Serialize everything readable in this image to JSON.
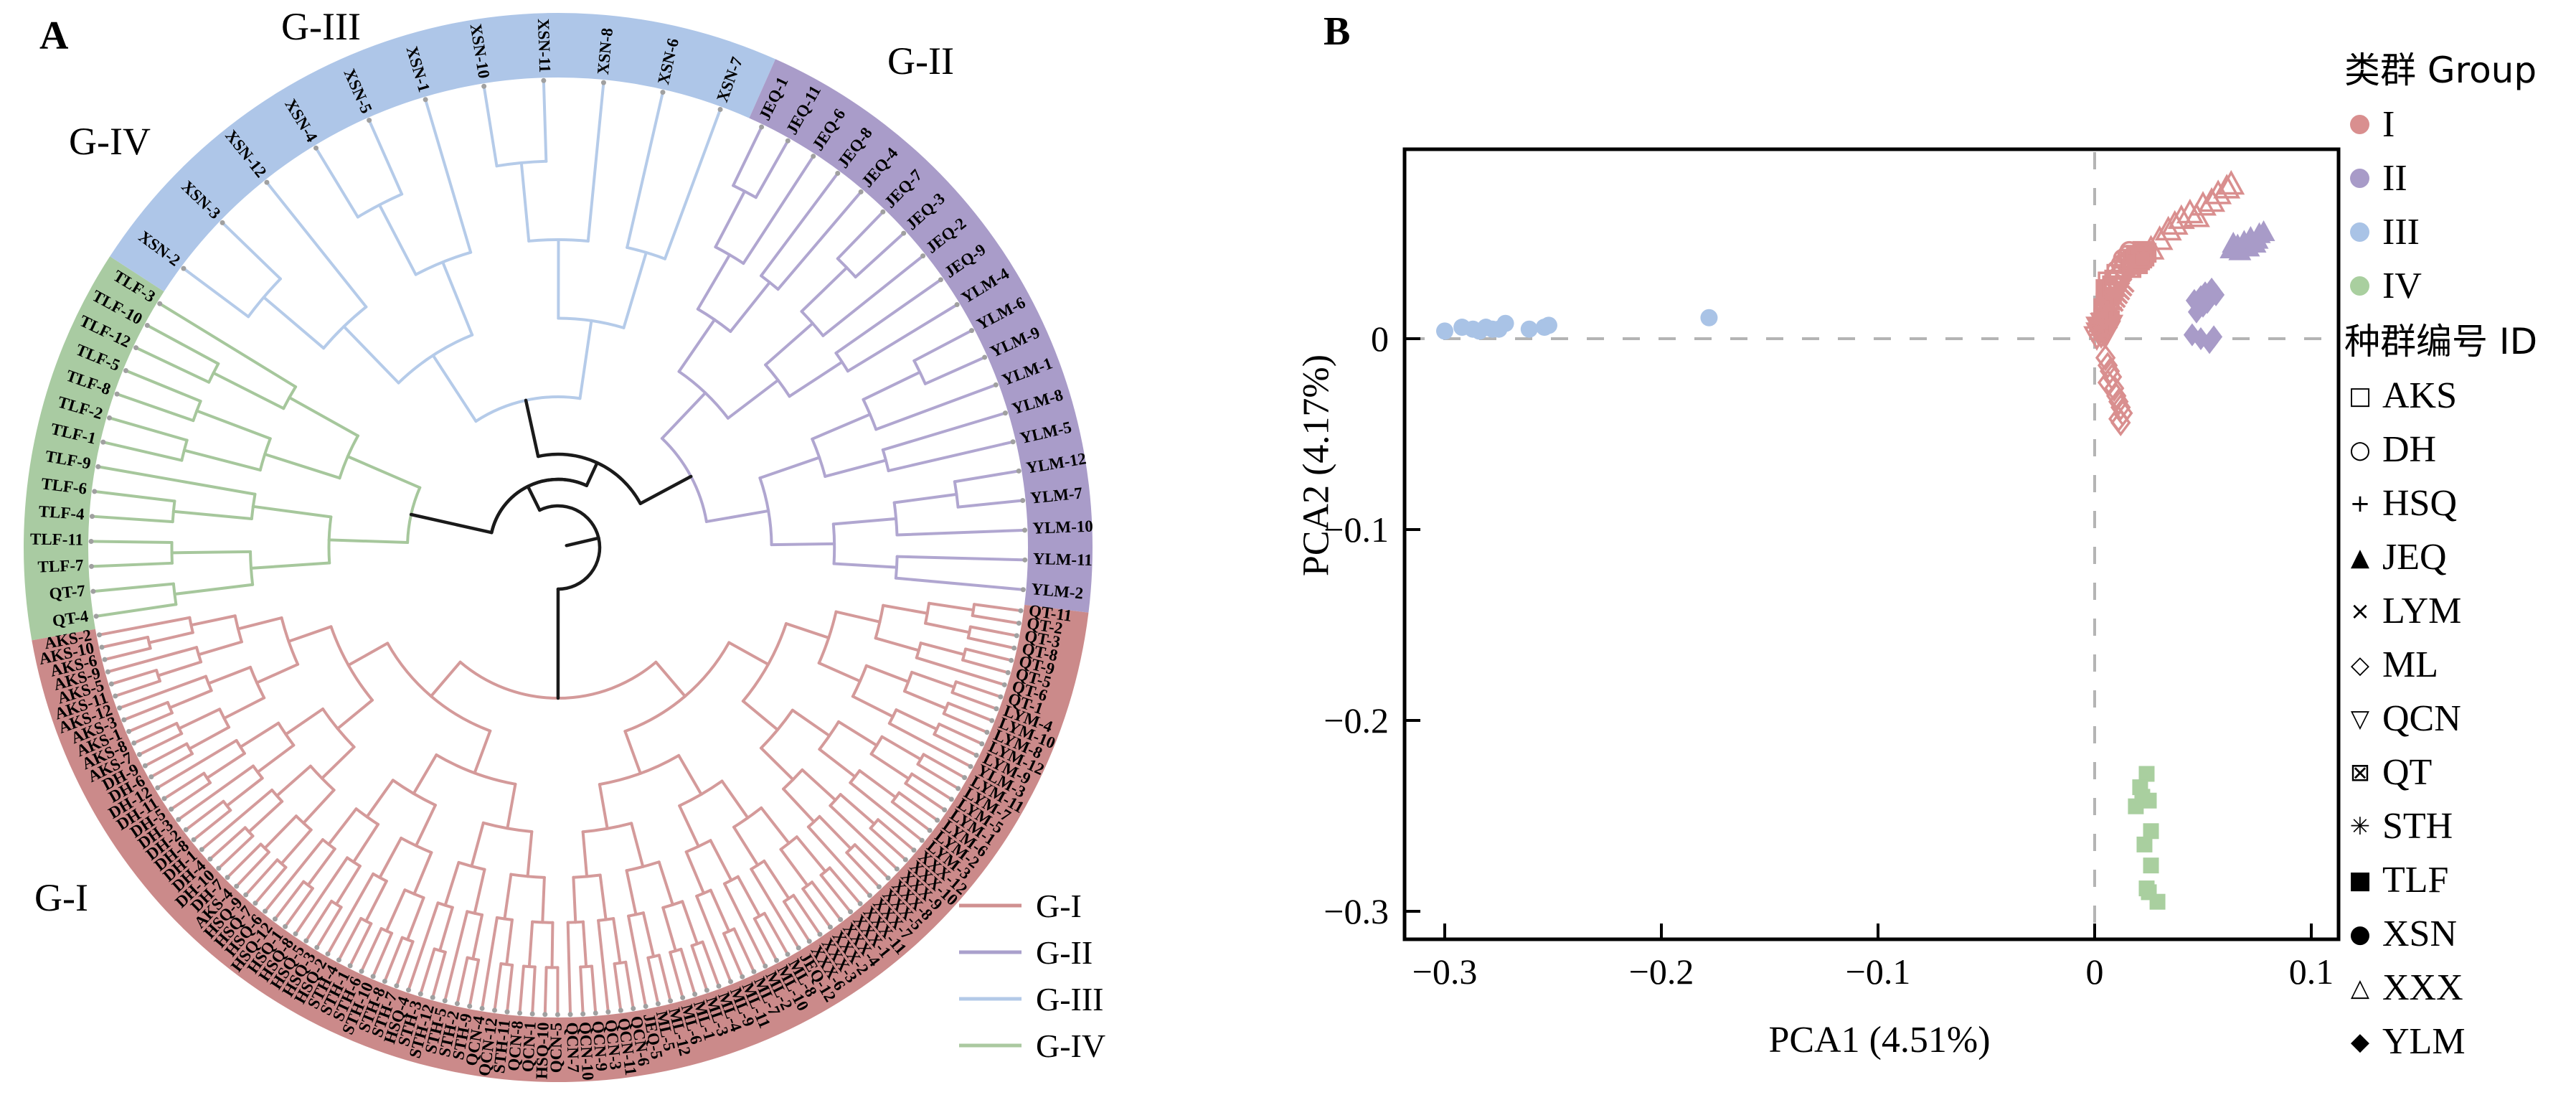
{
  "figure": {
    "panel_a": {
      "label": "A",
      "group_labels": {
        "g1": "G-I",
        "g2": "G-II",
        "g3": "G-III",
        "g4": "G-IV"
      },
      "legend": [
        {
          "label": "G-I",
          "color": "#d09090"
        },
        {
          "label": "G-II",
          "color": "#aaa0cc"
        },
        {
          "label": "G-III",
          "color": "#b3c9e8"
        },
        {
          "label": "G-IV",
          "color": "#abc9a0"
        }
      ],
      "groups": [
        {
          "id": "G-IV",
          "line_color": "#a6c79c",
          "band_color": "#a9cba2",
          "leaves": [
            "QT-4",
            "QT-7",
            "TLF-7",
            "TLF-11",
            "TLF-4",
            "TLF-6",
            "TLF-9",
            "TLF-1",
            "TLF-2",
            "TLF-8",
            "TLF-5",
            "TLF-12",
            "TLF-10",
            "TLF-3"
          ]
        },
        {
          "id": "G-III",
          "line_color": "#b5cbe9",
          "band_color": "#aec6e8",
          "leaves": [
            "XSN-2",
            "XSN-3",
            "XSN-12",
            "XSN-4",
            "XSN-5",
            "XSN-1",
            "XSN-10",
            "XSN-11",
            "XSN-8",
            "XSN-6",
            "XSN-7"
          ]
        },
        {
          "id": "G-II",
          "line_color": "#b0a6d0",
          "band_color": "#a99cc9",
          "leaves": [
            "JEQ-1",
            "JEQ-11",
            "JEQ-6",
            "JEQ-8",
            "JEQ-4",
            "JEQ-7",
            "JEQ-3",
            "JEQ-2",
            "JEQ-9",
            "YLM-4",
            "YLM-6",
            "YLM-9",
            "YLM-1",
            "YLM-8",
            "YLM-5",
            "YLM-12",
            "YLM-7",
            "YLM-10",
            "YLM-11",
            "YLM-2"
          ]
        },
        {
          "id": "G-I",
          "line_color": "#d49a9a",
          "band_color": "#cb8a8a",
          "leaves": [
            "QT-11",
            "QT-2",
            "QT-3",
            "QT-8",
            "QT-9",
            "QT-5",
            "QT-6",
            "QT-1",
            "LYM-4",
            "LYM-10",
            "LYM-8",
            "LYM-12",
            "LYM-9",
            "YLM-3",
            "LYM-11",
            "LYM-7",
            "LYM-5",
            "LYM-1",
            "LYM-6",
            "LYM-2",
            "LYM-3",
            "XXX-12",
            "XXX-10",
            "XXX-9",
            "XXX-8",
            "XXX-5",
            "XXX-7",
            "XXX-11",
            "XXX-1",
            "XXX-4",
            "XXX-2",
            "XXX-3",
            "XXX-6",
            "JEQ-12",
            "ML-8",
            "ML-10",
            "ML-2",
            "ML-7",
            "ML-11",
            "ML-9",
            "ML-4",
            "ML-3",
            "ML-1",
            "ML-6",
            "ML-12",
            "ML-5",
            "JEQ-5",
            "QCN-6",
            "QCN-11",
            "QCN-3",
            "QCN-9",
            "QCN-10",
            "QCN-7",
            "QCN-5",
            "HSQ-10",
            "QCN-1",
            "QCN-8",
            "STH-11",
            "QCN-12",
            "QCN-4",
            "STH-9",
            "STH-2",
            "STH-5",
            "STH-12",
            "STH-3",
            "HSQ-4",
            "STH-7",
            "STH-8",
            "STH-10",
            "STH-6",
            "STH-1",
            "STH-4",
            "HSQ-2",
            "HSQ-3",
            "HSQ-5",
            "HSQ-8",
            "HSQ-1",
            "HSQ-12",
            "HSQ-6",
            "HSQ-7",
            "HSQ-9",
            "AKS-4",
            "DH-7",
            "DH-10",
            "DH-4",
            "DH-1",
            "DH-8",
            "DH-2",
            "DH-3",
            "DH-5",
            "DH-11",
            "DH-12",
            "DH-6",
            "DH-9",
            "AKS-7",
            "AKS-8",
            "AKS-1",
            "AKS-3",
            "AKS-12",
            "AKS-11",
            "AKS-5",
            "AKS-9",
            "AKS-6",
            "AKS-10",
            "AKS-2"
          ]
        }
      ]
    },
    "panel_b": {
      "label": "B",
      "xlabel": "PCA1 (4.51%)",
      "ylabel": "PCA2 (4.17%)",
      "legend_group_title": "类群 Group",
      "legend_groups": [
        {
          "label": "I",
          "color": "#d98f8f"
        },
        {
          "label": "II",
          "color": "#a89bc8"
        },
        {
          "label": "III",
          "color": "#a9c3e6"
        },
        {
          "label": "IV",
          "color": "#a9cf9f"
        }
      ],
      "legend_id_title": "种群编号 ID",
      "legend_ids": [
        {
          "label": "AKS",
          "glyph": "□"
        },
        {
          "label": "DH",
          "glyph": "○"
        },
        {
          "label": "HSQ",
          "glyph": "+"
        },
        {
          "label": "JEQ",
          "glyph": "▲"
        },
        {
          "label": "LYM",
          "glyph": "×"
        },
        {
          "label": "ML",
          "glyph": "◇"
        },
        {
          "label": "QCN",
          "glyph": "▽"
        },
        {
          "label": "QT",
          "glyph": "⊠"
        },
        {
          "label": "STH",
          "glyph": "✳"
        },
        {
          "label": "TLF",
          "glyph": "■"
        },
        {
          "label": "XSN",
          "glyph": "●"
        },
        {
          "label": "XXX",
          "glyph": "△"
        },
        {
          "label": "YLM",
          "glyph": "◆"
        }
      ]
    }
  },
  "chart_data": {
    "type": "scatter",
    "title": "",
    "xlabel": "PCA1 (4.51%)",
    "ylabel": "PCA2 (4.17%)",
    "xlim": [
      -0.318,
      0.113
    ],
    "ylim": [
      -0.315,
      0.099
    ],
    "x_ticks": [
      -0.3,
      -0.2,
      -0.1,
      0,
      0.1
    ],
    "x_tick_labels": [
      "−0.3",
      "−0.2",
      "−0.1",
      "0",
      "0.1"
    ],
    "y_ticks": [
      0,
      -0.1,
      -0.2,
      -0.3
    ],
    "y_tick_labels": [
      "0",
      "−0.1",
      "−0.2",
      "−0.3"
    ],
    "grid": false,
    "reference_lines": {
      "vertical_x": 0,
      "horizontal_y": 0,
      "style": "dashed",
      "color": "#b4b4b4"
    },
    "legend_position": "right",
    "series": [
      {
        "name": "AKS",
        "group": "I",
        "marker": "square-open",
        "color": "#d98f8f",
        "points": [
          [
            0.004,
            0.016
          ],
          [
            0.005,
            0.019
          ],
          [
            0.006,
            0.022
          ],
          [
            0.007,
            0.025
          ],
          [
            0.008,
            0.028
          ],
          [
            0.009,
            0.031
          ],
          [
            0.01,
            0.034
          ],
          [
            0.006,
            0.03
          ],
          [
            0.005,
            0.026
          ],
          [
            0.007,
            0.02
          ],
          [
            0.008,
            0.024
          ],
          [
            0.009,
            0.027
          ]
        ]
      },
      {
        "name": "DH",
        "group": "I",
        "marker": "circle-open",
        "color": "#d98f8f",
        "points": [
          [
            0.01,
            0.036
          ],
          [
            0.012,
            0.039
          ],
          [
            0.013,
            0.042
          ],
          [
            0.015,
            0.044
          ],
          [
            0.016,
            0.046
          ],
          [
            0.011,
            0.033
          ],
          [
            0.013,
            0.037
          ],
          [
            0.014,
            0.04
          ],
          [
            0.016,
            0.042
          ],
          [
            0.017,
            0.038
          ],
          [
            0.018,
            0.044
          ],
          [
            0.019,
            0.041
          ]
        ]
      },
      {
        "name": "HSQ",
        "group": "I",
        "marker": "plus",
        "color": "#d98f8f",
        "points": [
          [
            0.002,
            0.004
          ],
          [
            0.003,
            0.007
          ],
          [
            0.004,
            0.009
          ],
          [
            0.005,
            0.011
          ],
          [
            0.003,
            0.013
          ],
          [
            0.004,
            0.015
          ],
          [
            0.005,
            0.006
          ],
          [
            0.006,
            0.008
          ],
          [
            0.006,
            0.012
          ],
          [
            0.007,
            0.014
          ],
          [
            0.005,
            0.016
          ],
          [
            0.004,
            0.005
          ]
        ]
      },
      {
        "name": "JEQ",
        "group": "II",
        "marker": "triangle-filled",
        "color": "#a89bc8",
        "points": [
          [
            0.063,
            0.047
          ],
          [
            0.066,
            0.049
          ],
          [
            0.069,
            0.051
          ],
          [
            0.072,
            0.053
          ],
          [
            0.074,
            0.05
          ],
          [
            0.076,
            0.055
          ],
          [
            0.078,
            0.056
          ],
          [
            0.067,
            0.046
          ],
          [
            0.071,
            0.048
          ],
          [
            0.075,
            0.052
          ],
          [
            0.064,
            0.05
          ]
        ]
      },
      {
        "name": "LYM",
        "group": "I",
        "marker": "x",
        "color": "#d98f8f",
        "points": [
          [
            0.006,
            0.018
          ],
          [
            0.008,
            0.02
          ],
          [
            0.009,
            0.022
          ],
          [
            0.01,
            0.024
          ],
          [
            0.011,
            0.026
          ],
          [
            0.012,
            0.028
          ],
          [
            0.009,
            0.019
          ],
          [
            0.01,
            0.021
          ],
          [
            0.011,
            0.023
          ],
          [
            0.013,
            0.027
          ],
          [
            0.012,
            0.025
          ],
          [
            0.014,
            0.029
          ]
        ]
      },
      {
        "name": "ML",
        "group": "I",
        "marker": "diamond-open",
        "color": "#d98f8f",
        "points": [
          [
            0.005,
            -0.01
          ],
          [
            0.006,
            -0.014
          ],
          [
            0.007,
            -0.017
          ],
          [
            0.008,
            -0.02
          ],
          [
            0.006,
            -0.023
          ],
          [
            0.009,
            -0.026
          ],
          [
            0.01,
            -0.03
          ],
          [
            0.011,
            -0.033
          ],
          [
            0.012,
            -0.036
          ],
          [
            0.013,
            -0.039
          ],
          [
            0.011,
            -0.042
          ],
          [
            0.012,
            -0.044
          ]
        ]
      },
      {
        "name": "QCN",
        "group": "I",
        "marker": "triangle-down-open",
        "color": "#d98f8f",
        "points": [
          [
            0.001,
            0.001
          ],
          [
            0.002,
            0.003
          ],
          [
            0.003,
            0.005
          ],
          [
            0.002,
            0.006
          ],
          [
            0.004,
            0.008
          ],
          [
            0.003,
            0.002
          ],
          [
            0.005,
            0.004
          ],
          [
            0.004,
            0.003
          ],
          [
            0.006,
            0.006
          ],
          [
            0.005,
            0.002
          ],
          [
            0.006,
            0.004
          ],
          [
            0.007,
            0.007
          ]
        ]
      },
      {
        "name": "QT",
        "group": "I",
        "marker": "square-x",
        "color": "#d98f8f",
        "points": [
          [
            0.018,
            0.04
          ],
          [
            0.02,
            0.043
          ],
          [
            0.022,
            0.046
          ],
          [
            0.019,
            0.044
          ],
          [
            0.021,
            0.041
          ],
          [
            0.023,
            0.043
          ],
          [
            0.017,
            0.037
          ],
          [
            0.02,
            0.039
          ],
          [
            0.024,
            0.045
          ],
          [
            0.022,
            0.042
          ]
        ]
      },
      {
        "name": "STH",
        "group": "I",
        "marker": "asterisk",
        "color": "#d98f8f",
        "points": [
          [
            0.002,
            0.002
          ],
          [
            0.003,
            0.004
          ],
          [
            0.004,
            0.006
          ],
          [
            0.005,
            0.008
          ],
          [
            0.006,
            0.01
          ],
          [
            0.007,
            0.012
          ],
          [
            0.003,
            0.009
          ],
          [
            0.004,
            0.011
          ],
          [
            0.005,
            0.013
          ],
          [
            0.006,
            0.015
          ],
          [
            0.008,
            0.016
          ],
          [
            0.007,
            0.009
          ]
        ]
      },
      {
        "name": "TLF",
        "group": "IV",
        "marker": "square-filled",
        "color": "#a9cf9f",
        "points": [
          [
            0.024,
            -0.228
          ],
          [
            0.021,
            -0.235
          ],
          [
            0.022,
            -0.24
          ],
          [
            0.025,
            -0.242
          ],
          [
            0.019,
            -0.245
          ],
          [
            0.026,
            -0.258
          ],
          [
            0.023,
            -0.265
          ],
          [
            0.026,
            -0.276
          ],
          [
            0.024,
            -0.288
          ],
          [
            0.025,
            -0.29
          ],
          [
            0.029,
            -0.295
          ]
        ]
      },
      {
        "name": "XSN",
        "group": "III",
        "marker": "circle-filled",
        "color": "#a9c3e6",
        "points": [
          [
            -0.3,
            0.004
          ],
          [
            -0.292,
            0.006
          ],
          [
            -0.287,
            0.005
          ],
          [
            -0.284,
            0.004
          ],
          [
            -0.281,
            0.006
          ],
          [
            -0.278,
            0.005
          ],
          [
            -0.275,
            0.005
          ],
          [
            -0.272,
            0.008
          ],
          [
            -0.261,
            0.005
          ],
          [
            -0.254,
            0.006
          ],
          [
            -0.252,
            0.007
          ],
          [
            -0.178,
            0.011
          ]
        ]
      },
      {
        "name": "XXX",
        "group": "I",
        "marker": "triangle-open",
        "color": "#d98f8f",
        "points": [
          [
            0.026,
            0.047
          ],
          [
            0.03,
            0.052
          ],
          [
            0.034,
            0.057
          ],
          [
            0.037,
            0.06
          ],
          [
            0.04,
            0.063
          ],
          [
            0.044,
            0.066
          ],
          [
            0.047,
            0.064
          ],
          [
            0.05,
            0.07
          ],
          [
            0.054,
            0.072
          ],
          [
            0.057,
            0.076
          ],
          [
            0.061,
            0.079
          ],
          [
            0.063,
            0.081
          ]
        ]
      },
      {
        "name": "YLM",
        "group": "II",
        "marker": "diamond-filled",
        "color": "#a89bc8",
        "points": [
          [
            0.046,
            0.02
          ],
          [
            0.049,
            0.022
          ],
          [
            0.051,
            0.024
          ],
          [
            0.054,
            0.026
          ],
          [
            0.056,
            0.023
          ],
          [
            0.05,
            0.017
          ],
          [
            0.047,
            0.014
          ],
          [
            0.052,
            0.019
          ],
          [
            0.045,
            0.002
          ],
          [
            0.049,
            0.0
          ],
          [
            0.053,
            -0.002
          ],
          [
            0.055,
            0.001
          ]
        ]
      }
    ]
  }
}
